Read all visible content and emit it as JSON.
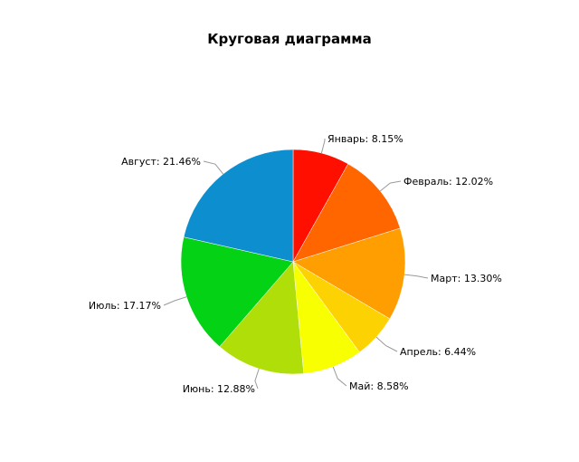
{
  "chart_data": {
    "type": "pie",
    "title": "Круговая диаграмма",
    "categories": [
      "Январь",
      "Февраль",
      "Март",
      "Апрель",
      "Май",
      "Июнь",
      "Июль",
      "Август"
    ],
    "values": [
      8.15,
      12.02,
      13.3,
      6.44,
      8.58,
      12.88,
      17.17,
      21.46
    ],
    "labels": [
      "Январь: 8.15%",
      "Февраль: 12.02%",
      "Март: 13.30%",
      "Апрель: 6.44%",
      "Май: 8.58%",
      "Июнь: 12.88%",
      "Июль: 17.17%",
      "Август: 21.46%"
    ],
    "colors": [
      "#ff0f00",
      "#ff6600",
      "#ff9e01",
      "#fcd202",
      "#f8ff01",
      "#b0de09",
      "#04d215",
      "#0d8ecf"
    ],
    "start_angle": "12 o'clock, clockwise",
    "legend": "none"
  }
}
